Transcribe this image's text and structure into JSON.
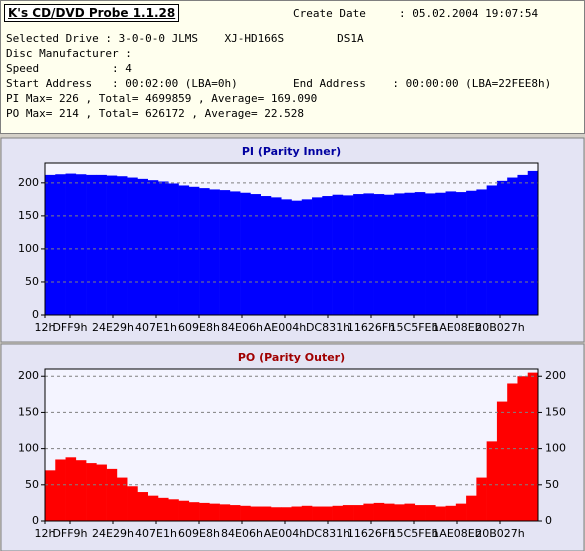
{
  "header": {
    "title": "K's CD/DVD Probe 1.1.28",
    "create_label": "Create Date",
    "create_value": ": 05.02.2004 19:07:54",
    "drive": "Selected Drive : 3-0-0-0 JLMS    XJ-HD166S        DS1A",
    "manufacturer": "Disc Manufacturer :",
    "speed": "Speed           : 4",
    "start": "Start Address   : 00:02:00 (LBA=0h)",
    "end": "End Address    : 00:00:00 (LBA=22FEE8h)",
    "pi_stats": "PI Max= 226 , Total= 4699859 , Average= 169.090",
    "po_stats": "PO Max= 214 , Total= 626172 , Average= 22.528"
  },
  "chart_data": [
    {
      "type": "bar",
      "title": "PI (Parity Inner)",
      "title_color": "#0000a0",
      "color": "#0000ff",
      "x_labels": [
        "12h",
        "DFF9h",
        "24E29h",
        "407E1h",
        "609E8h",
        "84E06h",
        "AE004h",
        "DC831h",
        "11626Fh",
        "15C5FEh",
        "1AE08Eh",
        "20B027h"
      ],
      "values": [
        212,
        213,
        214,
        213,
        212,
        212,
        211,
        210,
        208,
        206,
        204,
        202,
        199,
        196,
        194,
        192,
        190,
        189,
        187,
        185,
        183,
        180,
        178,
        175,
        173,
        175,
        178,
        180,
        182,
        181,
        183,
        184,
        183,
        182,
        184,
        185,
        186,
        184,
        185,
        187,
        186,
        188,
        190,
        196,
        203,
        208,
        212,
        218
      ],
      "ylim": [
        0,
        230
      ],
      "yticks": [
        0,
        50,
        100,
        150,
        200
      ],
      "grid": true,
      "right_axis": false
    },
    {
      "type": "bar",
      "title": "PO (Parity Outer)",
      "title_color": "#a00000",
      "color": "#ff0000",
      "x_labels": [
        "12h",
        "DFF9h",
        "24E29h",
        "407E1h",
        "609E8h",
        "84E06h",
        "AE004h",
        "DC831h",
        "11626Fh",
        "15C5FEh",
        "1AE08Eh",
        "20B027h"
      ],
      "values": [
        70,
        85,
        88,
        84,
        80,
        78,
        72,
        60,
        48,
        40,
        35,
        32,
        30,
        28,
        26,
        25,
        24,
        23,
        22,
        21,
        20,
        20,
        19,
        19,
        20,
        21,
        20,
        20,
        21,
        22,
        22,
        24,
        25,
        24,
        23,
        24,
        22,
        22,
        20,
        21,
        24,
        35,
        60,
        110,
        165,
        190,
        200,
        205
      ],
      "ylim": [
        0,
        210
      ],
      "yticks": [
        0,
        50,
        100,
        150,
        200
      ],
      "grid": true,
      "right_axis": true
    }
  ]
}
